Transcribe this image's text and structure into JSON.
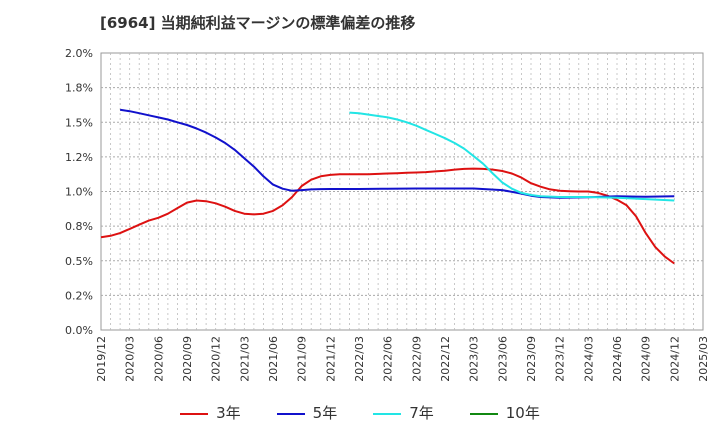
{
  "chart_data": {
    "type": "line",
    "title": "[6964]  当期純利益マージンの標準偏差の推移",
    "x_ticks": [
      "2019/12",
      "2020/03",
      "2020/06",
      "2020/09",
      "2020/12",
      "2021/03",
      "2021/06",
      "2021/09",
      "2021/12",
      "2022/03",
      "2022/06",
      "2022/09",
      "2022/12",
      "2023/03",
      "2023/06",
      "2023/09",
      "2023/12",
      "2024/03",
      "2024/06",
      "2024/09",
      "2024/12",
      "2025/03"
    ],
    "y_ticks": [
      "0.0%",
      "0.2%",
      "0.5%",
      "0.8%",
      "1.0%",
      "1.2%",
      "1.5%",
      "1.8%",
      "2.0%"
    ],
    "ylim": [
      0,
      2.0
    ],
    "x_range": [
      "2019/12",
      "2025/03"
    ],
    "grid": true,
    "legend_position": "bottom",
    "series": [
      {
        "name": "3年",
        "color": "#dd1111",
        "points": [
          [
            "2019/12",
            0.67
          ],
          [
            "2020/01",
            0.68
          ],
          [
            "2020/02",
            0.7
          ],
          [
            "2020/03",
            0.73
          ],
          [
            "2020/04",
            0.76
          ],
          [
            "2020/05",
            0.79
          ],
          [
            "2020/06",
            0.81
          ],
          [
            "2020/07",
            0.84
          ],
          [
            "2020/08",
            0.88
          ],
          [
            "2020/09",
            0.92
          ],
          [
            "2020/10",
            0.935
          ],
          [
            "2020/11",
            0.93
          ],
          [
            "2020/12",
            0.915
          ],
          [
            "2021/01",
            0.89
          ],
          [
            "2021/02",
            0.86
          ],
          [
            "2021/03",
            0.84
          ],
          [
            "2021/04",
            0.835
          ],
          [
            "2021/05",
            0.84
          ],
          [
            "2021/06",
            0.86
          ],
          [
            "2021/07",
            0.9
          ],
          [
            "2021/08",
            0.96
          ],
          [
            "2021/09",
            1.04
          ],
          [
            "2021/10",
            1.085
          ],
          [
            "2021/11",
            1.11
          ],
          [
            "2021/12",
            1.12
          ],
          [
            "2022/01",
            1.125
          ],
          [
            "2022/02",
            1.125
          ],
          [
            "2022/03",
            1.125
          ],
          [
            "2022/04",
            1.125
          ],
          [
            "2022/05",
            1.127
          ],
          [
            "2022/06",
            1.13
          ],
          [
            "2022/07",
            1.132
          ],
          [
            "2022/08",
            1.135
          ],
          [
            "2022/09",
            1.137
          ],
          [
            "2022/10",
            1.14
          ],
          [
            "2022/11",
            1.145
          ],
          [
            "2022/12",
            1.15
          ],
          [
            "2023/01",
            1.158
          ],
          [
            "2023/02",
            1.163
          ],
          [
            "2023/03",
            1.165
          ],
          [
            "2023/04",
            1.163
          ],
          [
            "2023/05",
            1.158
          ],
          [
            "2023/06",
            1.148
          ],
          [
            "2023/07",
            1.13
          ],
          [
            "2023/08",
            1.1
          ],
          [
            "2023/09",
            1.06
          ],
          [
            "2023/10",
            1.035
          ],
          [
            "2023/11",
            1.015
          ],
          [
            "2023/12",
            1.005
          ],
          [
            "2024/01",
            1.002
          ],
          [
            "2024/02",
            1.0
          ],
          [
            "2024/03",
            1.0
          ],
          [
            "2024/04",
            0.99
          ],
          [
            "2024/05",
            0.97
          ],
          [
            "2024/06",
            0.94
          ],
          [
            "2024/07",
            0.9
          ],
          [
            "2024/08",
            0.82
          ],
          [
            "2024/09",
            0.7
          ],
          [
            "2024/10",
            0.6
          ],
          [
            "2024/11",
            0.53
          ],
          [
            "2024/12",
            0.48
          ]
        ]
      },
      {
        "name": "5年",
        "color": "#1111cc",
        "points": [
          [
            "2020/02",
            1.59
          ],
          [
            "2020/03",
            1.58
          ],
          [
            "2020/04",
            1.565
          ],
          [
            "2020/05",
            1.55
          ],
          [
            "2020/06",
            1.535
          ],
          [
            "2020/07",
            1.52
          ],
          [
            "2020/08",
            1.5
          ],
          [
            "2020/09",
            1.48
          ],
          [
            "2020/10",
            1.455
          ],
          [
            "2020/11",
            1.425
          ],
          [
            "2020/12",
            1.39
          ],
          [
            "2021/01",
            1.35
          ],
          [
            "2021/02",
            1.3
          ],
          [
            "2021/03",
            1.24
          ],
          [
            "2021/04",
            1.18
          ],
          [
            "2021/05",
            1.11
          ],
          [
            "2021/06",
            1.05
          ],
          [
            "2021/07",
            1.02
          ],
          [
            "2021/08",
            1.005
          ],
          [
            "2021/09",
            1.01
          ],
          [
            "2021/10",
            1.015
          ],
          [
            "2021/11",
            1.017
          ],
          [
            "2021/12",
            1.018
          ],
          [
            "2022/03",
            1.018
          ],
          [
            "2022/06",
            1.02
          ],
          [
            "2022/09",
            1.022
          ],
          [
            "2022/12",
            1.022
          ],
          [
            "2023/03",
            1.022
          ],
          [
            "2023/06",
            1.01
          ],
          [
            "2023/08",
            0.985
          ],
          [
            "2023/09",
            0.97
          ],
          [
            "2023/10",
            0.96
          ],
          [
            "2023/12",
            0.955
          ],
          [
            "2024/03",
            0.958
          ],
          [
            "2024/06",
            0.965
          ],
          [
            "2024/09",
            0.962
          ],
          [
            "2024/12",
            0.965
          ]
        ]
      },
      {
        "name": "7年",
        "color": "#22e5e5",
        "points": [
          [
            "2022/02",
            1.57
          ],
          [
            "2022/03",
            1.565
          ],
          [
            "2022/04",
            1.555
          ],
          [
            "2022/05",
            1.545
          ],
          [
            "2022/06",
            1.535
          ],
          [
            "2022/07",
            1.52
          ],
          [
            "2022/08",
            1.5
          ],
          [
            "2022/09",
            1.475
          ],
          [
            "2022/10",
            1.445
          ],
          [
            "2022/11",
            1.415
          ],
          [
            "2022/12",
            1.385
          ],
          [
            "2023/01",
            1.35
          ],
          [
            "2023/02",
            1.31
          ],
          [
            "2023/03",
            1.255
          ],
          [
            "2023/04",
            1.2
          ],
          [
            "2023/05",
            1.13
          ],
          [
            "2023/06",
            1.065
          ],
          [
            "2023/07",
            1.02
          ],
          [
            "2023/08",
            0.99
          ],
          [
            "2023/09",
            0.975
          ],
          [
            "2023/10",
            0.965
          ],
          [
            "2023/12",
            0.96
          ],
          [
            "2024/03",
            0.96
          ],
          [
            "2024/06",
            0.955
          ],
          [
            "2024/09",
            0.945
          ],
          [
            "2024/12",
            0.935
          ]
        ]
      },
      {
        "name": "10年",
        "color": "#118811",
        "points": []
      }
    ]
  }
}
